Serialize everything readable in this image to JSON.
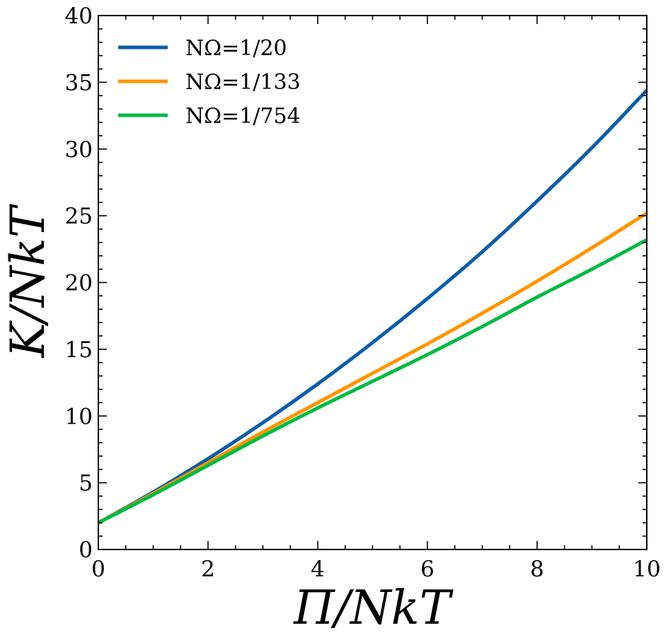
{
  "chart_data": {
    "type": "line",
    "title": "",
    "xlabel": "Π/NkT",
    "ylabel": "K/NkT",
    "xlim": [
      0,
      10
    ],
    "ylim": [
      0,
      40
    ],
    "xticks": [
      "0",
      "2",
      "4",
      "6",
      "8",
      "10"
    ],
    "yticks": [
      "0",
      "5",
      "10",
      "15",
      "20",
      "25",
      "30",
      "35",
      "40"
    ],
    "grid": false,
    "legend_position": "top-left",
    "x": [
      0,
      1,
      2,
      3,
      4,
      5,
      6,
      7,
      8,
      9,
      10
    ],
    "series": [
      {
        "name": "NΩ=1/20",
        "color": "#0c5da5",
        "values": [
          2.0,
          4.3,
          6.8,
          9.5,
          12.4,
          15.5,
          18.8,
          22.3,
          26.1,
          30.1,
          34.4
        ]
      },
      {
        "name": "NΩ=1/133",
        "color": "#ff9500",
        "values": [
          2.0,
          4.2,
          6.5,
          8.8,
          11.0,
          13.2,
          15.4,
          17.7,
          20.1,
          22.6,
          25.2
        ]
      },
      {
        "name": "NΩ=1/754",
        "color": "#00b945",
        "values": [
          2.0,
          4.1,
          6.3,
          8.5,
          10.6,
          12.6,
          14.6,
          16.7,
          18.9,
          21.0,
          23.2
        ]
      }
    ]
  }
}
